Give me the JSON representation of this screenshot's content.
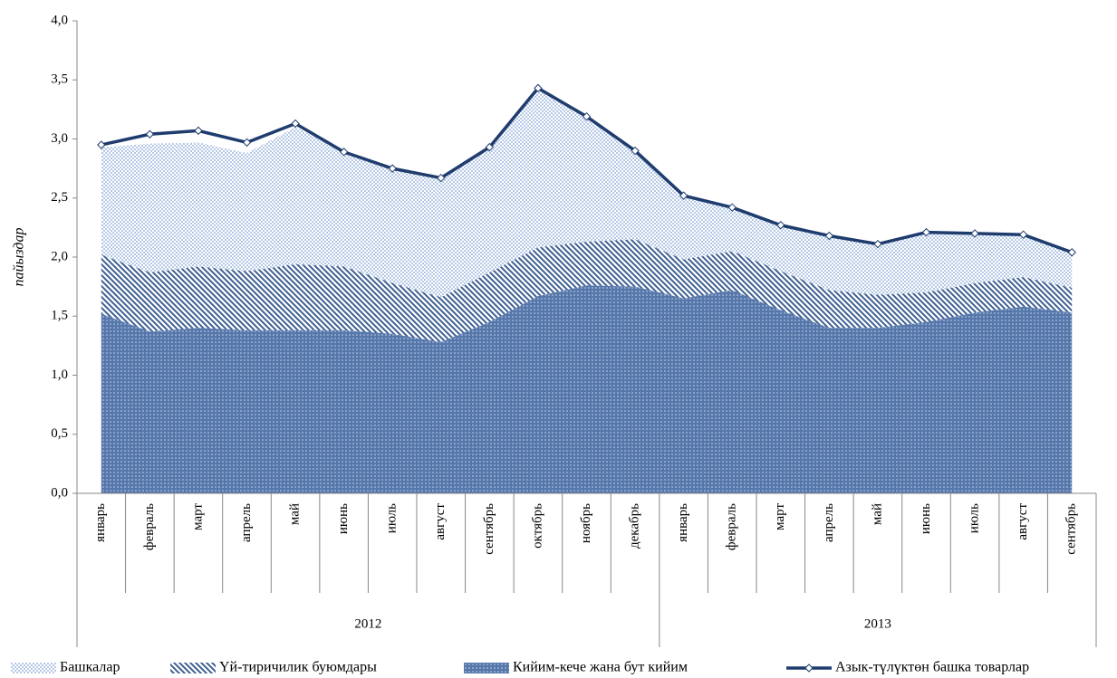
{
  "chart_data": {
    "type": "stacked_area_line",
    "y_label": "пайыздар",
    "ylim": [
      0,
      4
    ],
    "yticks": [
      {
        "value": 0,
        "label": "0,0"
      },
      {
        "value": 0.5,
        "label": "0,5"
      },
      {
        "value": 1,
        "label": "1,0"
      },
      {
        "value": 1.5,
        "label": "1,5"
      },
      {
        "value": 2,
        "label": "2,0"
      },
      {
        "value": 2.5,
        "label": "2,5"
      },
      {
        "value": 3,
        "label": "3,0"
      },
      {
        "value": 3.5,
        "label": "3,5"
      },
      {
        "value": 4,
        "label": "4,0"
      }
    ],
    "category_groups": [
      {
        "label": "2012",
        "categories": [
          "январь",
          "февраль",
          "март",
          "апрель",
          "май",
          "июнь",
          "июль",
          "август",
          "сентябрь",
          "октябрь",
          "ноябрь",
          "декабрь"
        ]
      },
      {
        "label": "2013",
        "categories": [
          "январь",
          "февраль",
          "март",
          "апрель",
          "май",
          "июнь",
          "июль",
          "август",
          "сентябрь"
        ]
      }
    ],
    "series": [
      {
        "name": "Башкалар",
        "kind": "area",
        "color": "#9db8de",
        "values": [
          0.91,
          1.09,
          1.05,
          1.0,
          1.16,
          0.98,
          0.98,
          1.01,
          1.06,
          1.34,
          1.06,
          0.76,
          0.54,
          0.37,
          0.4,
          0.46,
          0.43,
          0.51,
          0.43,
          0.37,
          0.3
        ]
      },
      {
        "name": "Үй-тиричилик буюмдары",
        "kind": "area",
        "color": "#3f5f92",
        "values": [
          0.5,
          0.5,
          0.52,
          0.5,
          0.56,
          0.54,
          0.43,
          0.38,
          0.42,
          0.41,
          0.37,
          0.4,
          0.33,
          0.33,
          0.33,
          0.32,
          0.28,
          0.25,
          0.25,
          0.25,
          0.21
        ]
      },
      {
        "name": "Кийим-кече жана бут кийим",
        "kind": "area",
        "color": "#5677ab",
        "values": [
          1.52,
          1.37,
          1.4,
          1.38,
          1.38,
          1.38,
          1.35,
          1.28,
          1.45,
          1.67,
          1.76,
          1.75,
          1.65,
          1.72,
          1.55,
          1.4,
          1.4,
          1.45,
          1.53,
          1.58,
          1.53
        ]
      },
      {
        "name": "Азык-түлүктөн башка товарлар",
        "kind": "line",
        "color": "#1f3c6e",
        "values": [
          2.95,
          3.04,
          3.07,
          2.97,
          3.13,
          2.89,
          2.75,
          2.67,
          2.93,
          3.43,
          3.19,
          2.9,
          2.52,
          2.42,
          2.27,
          2.18,
          2.11,
          2.21,
          2.2,
          2.19,
          2.04
        ]
      }
    ]
  }
}
